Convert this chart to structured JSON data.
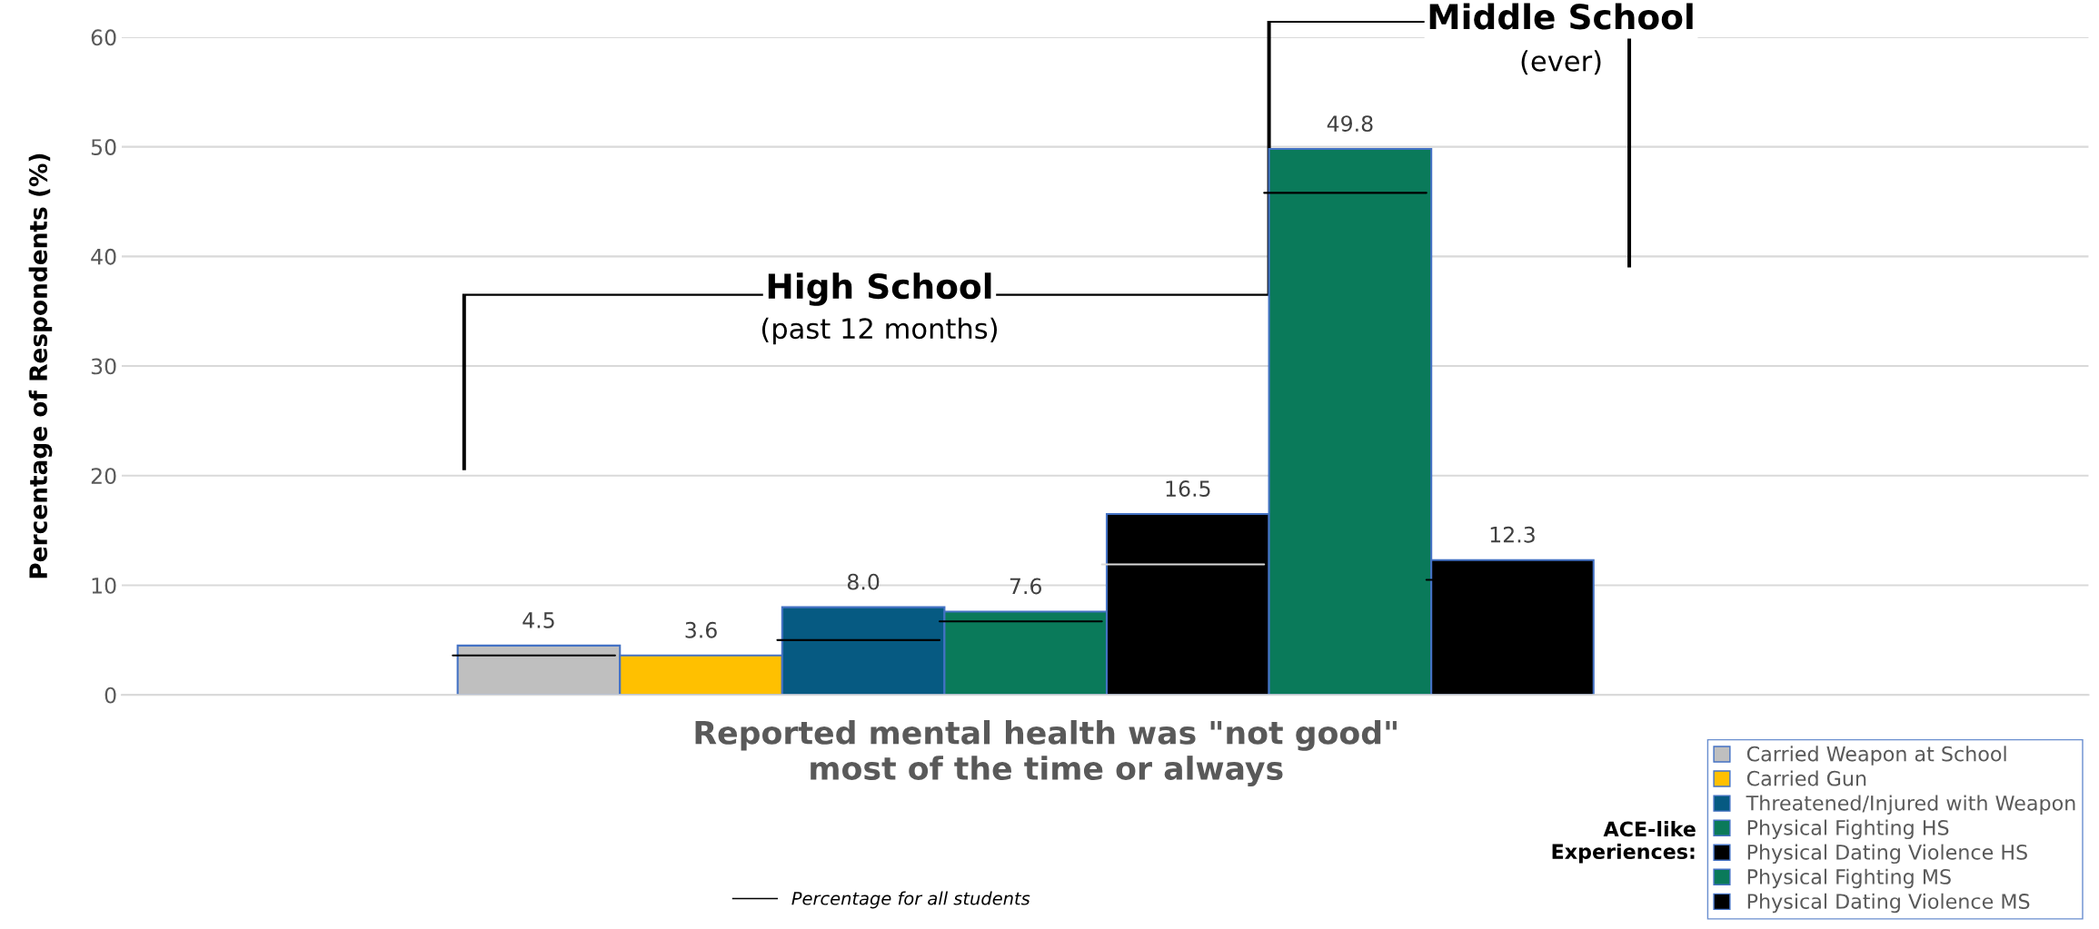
{
  "chart_data": {
    "type": "bar",
    "xlabel": "Reported mental health was \"not good\"\nmost of the time or always",
    "ylabel": "Percentage of Respondents (%)",
    "legend_title": "ACE-like\nExperiences:",
    "categories": [
      null
    ],
    "series": [
      {
        "name": "Carried Weapon at School",
        "color": "#bfbfbf",
        "values": [
          4.5
        ],
        "value_labels": [
          "4.5"
        ]
      },
      {
        "name": "Carried Gun",
        "color": "#ffc000",
        "values": [
          3.6
        ],
        "value_labels": [
          "3.6"
        ]
      },
      {
        "name": "Threatened/Injured with Weapon",
        "color": "#065a82",
        "values": [
          8.0
        ],
        "value_labels": [
          "8.0"
        ]
      },
      {
        "name": "Physical Fighting HS",
        "color": "#0a7a5a",
        "values": [
          7.6
        ],
        "value_labels": [
          "7.6"
        ]
      },
      {
        "name": "Physical Dating Violence HS",
        "color": "#000000",
        "values": [
          16.5
        ],
        "value_labels": [
          "16.5"
        ]
      },
      {
        "name": "Physical Fighting MS",
        "color": "#0a7a5a",
        "values": [
          49.8
        ],
        "value_labels": [
          "49.8"
        ]
      },
      {
        "name": "Physical Dating Violence MS",
        "color": "#000000",
        "values": [
          12.3
        ],
        "value_labels": [
          "12.3"
        ]
      }
    ],
    "ref_lines": [
      {
        "axis": "y",
        "value": 3.6,
        "label": "Percentage for all students",
        "color": "#000000"
      },
      {
        "axis": "y",
        "value": 5.0,
        "color": "#000000"
      },
      {
        "axis": "y",
        "value": 6.7,
        "color": "#000000"
      },
      {
        "axis": "y",
        "value": 11.9,
        "color": "#d9d9d9"
      },
      {
        "axis": "y",
        "value": 45.8,
        "color": "#000000"
      },
      {
        "axis": "y",
        "value": 10.5,
        "color": "#000000"
      }
    ],
    "ylim": [
      0,
      60
    ],
    "yticks": [
      0,
      10,
      20,
      30,
      40,
      50,
      60
    ],
    "grid": "y",
    "legend": "bottom right",
    "annotations": [
      "High School",
      "(past 12 months)",
      "Middle School",
      "(ever)"
    ]
  }
}
